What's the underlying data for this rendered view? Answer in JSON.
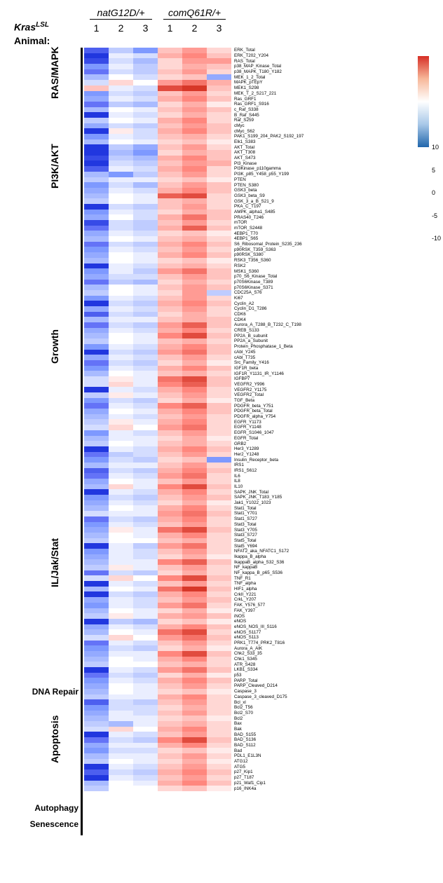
{
  "title": {
    "kras": "Kras",
    "lsl": "LSL",
    "animal": "Animal:"
  },
  "groups": [
    "natG12D/+",
    "comQ61R/+"
  ],
  "animals": [
    "1",
    "2",
    "3",
    "1",
    "2",
    "3"
  ],
  "colorbar": {
    "max": 10,
    "min": -10,
    "ticks": [
      {
        "v": "10",
        "pos": 0
      },
      {
        "v": "5",
        "pos": 25
      },
      {
        "v": "0",
        "pos": 50
      },
      {
        "v": "-5",
        "pos": 75
      },
      {
        "v": "-10",
        "pos": 100
      }
    ],
    "colors": [
      "#d62f26",
      "#f4a582",
      "#ffffff",
      "#92c5de",
      "#2166ac"
    ]
  },
  "row_height": 7.7,
  "pathways": [
    {
      "name": "RAS/MAPK",
      "start": 0,
      "end": 17
    },
    {
      "name": "PI3K/AKT",
      "start": 17,
      "end": 33
    },
    {
      "name": "Growth",
      "start": 33,
      "end": 82
    },
    {
      "name": "IL/Jak/Stat",
      "start": 82,
      "end": 116
    },
    {
      "name": "DNA Repair",
      "start": 116,
      "end": 123,
      "horiz": true
    },
    {
      "name": "Apoptosis",
      "start": 123,
      "end": 140
    },
    {
      "name": "Autophagy",
      "start": 140,
      "end": 142,
      "horiz": true
    },
    {
      "name": "Senescence",
      "start": 142,
      "end": 146,
      "horiz": true
    }
  ],
  "rows": [
    {
      "p": "ERK_Total",
      "v": [
        -8,
        -3,
        -6,
        3,
        5,
        2
      ]
    },
    {
      "p": "ERK_T202_Y204",
      "v": [
        -10,
        -1,
        -2,
        4,
        6,
        3
      ]
    },
    {
      "p": "RAS_Total",
      "v": [
        -9,
        -2,
        -4,
        2,
        5,
        5
      ]
    },
    {
      "p": "p38_MAP_Kinase_Total",
      "v": [
        -6,
        -1,
        -3,
        2,
        4,
        3
      ]
    },
    {
      "p": "p38_MAPK_T180_Y182",
      "v": [
        -7,
        -2,
        -3,
        3,
        5,
        2
      ]
    },
    {
      "p": "MEK_1_2_Total",
      "v": [
        -4,
        0,
        -2,
        2,
        3,
        -5
      ]
    },
    {
      "p": "MAPK_pTEpY",
      "v": [
        -2,
        2,
        0,
        5,
        7,
        4
      ]
    },
    {
      "p": "MEK1_S298",
      "v": [
        3,
        -1,
        -2,
        9,
        10,
        3
      ]
    },
    {
      "p": "MEK_T_2_S217_221",
      "v": [
        -6,
        -2,
        -3,
        3,
        5,
        2
      ]
    },
    {
      "p": "Ras_GRF1",
      "v": [
        -5,
        -1,
        -2,
        4,
        6,
        3
      ]
    },
    {
      "p": "Ras_GRF1_S916",
      "v": [
        -7,
        -3,
        -4,
        2,
        4,
        1
      ]
    },
    {
      "p": "c_Raf_S338",
      "v": [
        -4,
        0,
        -1,
        3,
        5,
        3
      ]
    },
    {
      "p": "B_Raf_S445",
      "v": [
        -10,
        -1,
        -2,
        2,
        4,
        2
      ]
    },
    {
      "p": "Raf_S259",
      "v": [
        -3,
        0,
        -1,
        4,
        6,
        2
      ]
    },
    {
      "p": "cMyc",
      "v": [
        -5,
        -2,
        -3,
        3,
        5,
        3
      ]
    },
    {
      "p": "cMyc_S62",
      "v": [
        -10,
        1,
        -2,
        4,
        6,
        3
      ]
    },
    {
      "p": "PAK1_S199_204_PAK2_S192_197",
      "v": [
        -6,
        -1,
        -2,
        3,
        4,
        2
      ]
    },
    {
      "p": "Elk1_S383",
      "v": [
        -4,
        0,
        -1,
        2,
        3,
        1
      ]
    },
    {
      "p": "AKT_Total",
      "v": [
        -10,
        -3,
        -5,
        3,
        5,
        2
      ]
    },
    {
      "p": "AKT_T308",
      "v": [
        -10,
        -4,
        -6,
        2,
        4,
        3
      ]
    },
    {
      "p": "AKT_S473",
      "v": [
        -9,
        -3,
        -4,
        4,
        6,
        3
      ]
    },
    {
      "p": "PI3_Kinase",
      "v": [
        -10,
        -2,
        -3,
        3,
        5,
        4
      ]
    },
    {
      "p": "PI3Kinase_p110gamma",
      "v": [
        -8,
        -1,
        -2,
        4,
        6,
        2
      ]
    },
    {
      "p": "PI3K_p85_Y458_p55_Y199",
      "v": [
        -4,
        -6,
        -3,
        3,
        5,
        2
      ]
    },
    {
      "p": "PTEN",
      "v": [
        -3,
        -1,
        -1,
        2,
        3,
        1
      ]
    },
    {
      "p": "PTEN_S380",
      "v": [
        -6,
        -2,
        -4,
        3,
        5,
        3
      ]
    },
    {
      "p": "GSK3_beta",
      "v": [
        -5,
        -1,
        -2,
        4,
        6,
        3
      ]
    },
    {
      "p": "GSK3_beta_S9",
      "v": [
        -4,
        0,
        -1,
        8,
        9,
        2
      ]
    },
    {
      "p": "GSK_3_a_B_S21_9",
      "v": [
        -3,
        0,
        -1,
        3,
        4,
        2
      ]
    },
    {
      "p": "PKA_C_T197",
      "v": [
        -10,
        -2,
        -3,
        3,
        5,
        2
      ]
    },
    {
      "p": "AMPK_alpha1_S485",
      "v": [
        -6,
        -1,
        -2,
        2,
        4,
        3
      ]
    },
    {
      "p": "PRAS40_T246",
      "v": [
        -5,
        0,
        -2,
        4,
        7,
        3
      ]
    },
    {
      "p": "mTOR",
      "v": [
        -9,
        -2,
        -3,
        3,
        5,
        2
      ]
    },
    {
      "p": "mTOR_S2448",
      "v": [
        -7,
        -2,
        -3,
        4,
        8,
        3
      ]
    },
    {
      "p": "4EBP1_T70",
      "v": [
        -5,
        -1,
        -2,
        2,
        3,
        1
      ]
    },
    {
      "p": "4EBP1_S65",
      "v": [
        -4,
        0,
        -1,
        3,
        4,
        2
      ]
    },
    {
      "p": "S6_Ribosomal_Protein_S235_236",
      "v": [
        -7,
        -2,
        -3,
        4,
        6,
        3
      ]
    },
    {
      "p": "p90RSK_T359_S363",
      "v": [
        -6,
        -1,
        -2,
        3,
        5,
        2
      ]
    },
    {
      "p": "p90RSK_S380",
      "v": [
        -5,
        0,
        -1,
        4,
        6,
        3
      ]
    },
    {
      "p": "RSK3_T356_S360",
      "v": [
        -4,
        0,
        -1,
        2,
        3,
        1
      ]
    },
    {
      "p": "RSK2",
      "v": [
        -10,
        -1,
        -2,
        3,
        4,
        2
      ]
    },
    {
      "p": "MSK1_S360",
      "v": [
        -6,
        -1,
        -3,
        5,
        7,
        3
      ]
    },
    {
      "p": "p70_S6_Kinase_Total",
      "v": [
        -5,
        -2,
        -2,
        3,
        5,
        3
      ]
    },
    {
      "p": "p70S6Kinase_T389",
      "v": [
        -7,
        -3,
        -4,
        2,
        4,
        2
      ]
    },
    {
      "p": "p70S6Kinase_S371",
      "v": [
        -4,
        0,
        -1,
        3,
        5,
        3
      ]
    },
    {
      "p": "CDC25A_S76",
      "v": [
        -3,
        0,
        -1,
        2,
        5,
        -3
      ]
    },
    {
      "p": "Ki67",
      "v": [
        -6,
        -1,
        -2,
        3,
        5,
        2
      ]
    },
    {
      "p": "Cyclin_A2",
      "v": [
        -10,
        -2,
        -3,
        4,
        6,
        3
      ]
    },
    {
      "p": "Cyclin_D1_T286",
      "v": [
        -5,
        -1,
        -2,
        3,
        5,
        2
      ]
    },
    {
      "p": "CDK6",
      "v": [
        -8,
        -2,
        -3,
        2,
        4,
        2
      ]
    },
    {
      "p": "CDK4",
      "v": [
        -4,
        -1,
        -1,
        3,
        4,
        3
      ]
    },
    {
      "p": "Aurora_A_T288_B_T232_C_T198",
      "v": [
        -7,
        -2,
        -3,
        5,
        8,
        3
      ]
    },
    {
      "p": "CREB_S133",
      "v": [
        -5,
        -1,
        -2,
        4,
        6,
        2
      ]
    },
    {
      "p": "PP2A_B_subunit",
      "v": [
        -4,
        0,
        -1,
        6,
        9,
        3
      ]
    },
    {
      "p": "PP2A_a_Subunit",
      "v": [
        -3,
        0,
        -1,
        3,
        4,
        2
      ]
    },
    {
      "p": "Protein_Phosphatase_1_Beta",
      "v": [
        -6,
        -1,
        -2,
        4,
        6,
        3
      ]
    },
    {
      "p": "cAbl_Y245",
      "v": [
        -10,
        -2,
        -3,
        5,
        7,
        3
      ]
    },
    {
      "p": "cAbl_T735",
      "v": [
        -5,
        -1,
        -2,
        3,
        5,
        2
      ]
    },
    {
      "p": "Src_Family_Y416",
      "v": [
        -7,
        -2,
        -3,
        2,
        4,
        1
      ]
    },
    {
      "p": "IGF1R_beta",
      "v": [
        -6,
        -1,
        -2,
        4,
        6,
        3
      ]
    },
    {
      "p": "IGF1R_Y1131_IR_Y1146",
      "v": [
        -4,
        0,
        -1,
        3,
        4,
        2
      ]
    },
    {
      "p": "IGFBP7",
      "v": [
        -2,
        1,
        -1,
        7,
        9,
        3
      ]
    },
    {
      "p": "VEGFR2_Y996",
      "v": [
        -2,
        2,
        -1,
        6,
        8,
        3
      ]
    },
    {
      "p": "VEGFR2_Y1175",
      "v": [
        -10,
        -1,
        -2,
        4,
        6,
        2
      ]
    },
    {
      "p": "VEGFR2_Total",
      "v": [
        -3,
        1,
        -1,
        3,
        5,
        2
      ]
    },
    {
      "p": "TGF_Beta",
      "v": [
        -6,
        -2,
        -3,
        2,
        4,
        1
      ]
    },
    {
      "p": "PDGFR_beta_Y751",
      "v": [
        -7,
        -1,
        -2,
        6,
        8,
        3
      ]
    },
    {
      "p": "PDGFR_beta_Total",
      "v": [
        -5,
        0,
        -1,
        4,
        6,
        3
      ]
    },
    {
      "p": "PDGFR_alpha_Y754",
      "v": [
        -4,
        -1,
        -2,
        3,
        5,
        2
      ]
    },
    {
      "p": "EGFR_Y1173",
      "v": [
        -3,
        1,
        -1,
        4,
        6,
        2
      ]
    },
    {
      "p": "EGFR_Y1148",
      "v": [
        -2,
        2,
        0,
        5,
        7,
        2
      ]
    },
    {
      "p": "EGFR_S1046_1047",
      "v": [
        -6,
        -1,
        -2,
        3,
        5,
        2
      ]
    },
    {
      "p": "EGFR_Total",
      "v": [
        -4,
        -1,
        -1,
        2,
        4,
        1
      ]
    },
    {
      "p": "GRB2",
      "v": [
        -3,
        0,
        -1,
        3,
        4,
        2
      ]
    },
    {
      "p": "Her3_Y1289",
      "v": [
        -10,
        -1,
        -2,
        4,
        6,
        3
      ]
    },
    {
      "p": "Her2_Y1248",
      "v": [
        -7,
        -3,
        -2,
        3,
        5,
        2
      ]
    },
    {
      "p": "Insulin_Receptor_beta",
      "v": [
        -6,
        -2,
        -3,
        2,
        3,
        -6
      ]
    },
    {
      "p": "IRS1",
      "v": [
        -4,
        -1,
        -1,
        3,
        5,
        2
      ]
    },
    {
      "p": "IRS1_S612",
      "v": [
        -8,
        -2,
        -3,
        4,
        6,
        3
      ]
    },
    {
      "p": "IL6",
      "v": [
        -7,
        -1,
        -2,
        5,
        7,
        2
      ]
    },
    {
      "p": "IL8",
      "v": [
        -5,
        0,
        -1,
        3,
        5,
        2
      ]
    },
    {
      "p": "IL10",
      "v": [
        -4,
        2,
        -1,
        6,
        9,
        3
      ]
    },
    {
      "p": "SAPK_JNK_Total",
      "v": [
        -10,
        -1,
        -2,
        4,
        6,
        2
      ]
    },
    {
      "p": "SAPK_JNK_T183_Y185",
      "v": [
        -6,
        -2,
        -3,
        3,
        5,
        3
      ]
    },
    {
      "p": "Jak1_Y1022_1023",
      "v": [
        -5,
        -1,
        -2,
        2,
        4,
        1
      ]
    },
    {
      "p": "Stat1_Total",
      "v": [
        -4,
        0,
        -1,
        4,
        6,
        2
      ]
    },
    {
      "p": "Stat1_Y701",
      "v": [
        -2,
        -1,
        -1,
        5,
        7,
        3
      ]
    },
    {
      "p": "Stat1_S727",
      "v": [
        -7,
        -2,
        -3,
        4,
        6,
        2
      ]
    },
    {
      "p": "Stat3_Total",
      "v": [
        -6,
        -1,
        -2,
        3,
        5,
        2
      ]
    },
    {
      "p": "Stat3_Y705",
      "v": [
        -5,
        1,
        -1,
        7,
        9,
        3
      ]
    },
    {
      "p": "Stat3_S727",
      "v": [
        -4,
        0,
        -1,
        4,
        6,
        2
      ]
    },
    {
      "p": "Stat5_Total",
      "v": [
        -3,
        0,
        0,
        3,
        4,
        2
      ]
    },
    {
      "p": "Stat5_Y694",
      "v": [
        -10,
        -1,
        -3,
        5,
        7,
        2
      ]
    },
    {
      "p": "NFAT2_aka_NFATC1_S172",
      "v": [
        -6,
        -1,
        -2,
        3,
        5,
        2
      ]
    },
    {
      "p": "Ikappa_B_alpha",
      "v": [
        -5,
        -1,
        -2,
        2,
        4,
        1
      ]
    },
    {
      "p": "IkappaB_alpha_S32_S36",
      "v": [
        -4,
        -1,
        -1,
        6,
        8,
        3
      ]
    },
    {
      "p": "NF_kappaB",
      "v": [
        -3,
        1,
        -1,
        3,
        5,
        2
      ]
    },
    {
      "p": "NF_kappa_B_p65_S536",
      "v": [
        -7,
        -2,
        -3,
        2,
        4,
        2
      ]
    },
    {
      "p": "TNF_R1",
      "v": [
        -2,
        2,
        0,
        6,
        9,
        3
      ]
    },
    {
      "p": "TNF_alpha",
      "v": [
        -10,
        -1,
        -2,
        3,
        5,
        2
      ]
    },
    {
      "p": "HIF1_alpha",
      "v": [
        -4,
        0,
        -1,
        7,
        10,
        3
      ]
    },
    {
      "p": "CrkII_Y221",
      "v": [
        -10,
        -2,
        -3,
        4,
        6,
        2
      ]
    },
    {
      "p": "CrkL_Y207",
      "v": [
        -5,
        -1,
        -2,
        3,
        5,
        3
      ]
    },
    {
      "p": "FAK_Y576_577",
      "v": [
        -6,
        -1,
        -2,
        5,
        7,
        2
      ]
    },
    {
      "p": "FAK_Y397",
      "v": [
        -4,
        0,
        -1,
        2,
        4,
        1
      ]
    },
    {
      "p": "iNOS",
      "v": [
        -3,
        1,
        -1,
        4,
        5,
        3
      ]
    },
    {
      "p": "eNOS",
      "v": [
        -10,
        -3,
        -4,
        2,
        3,
        1
      ]
    },
    {
      "p": "eNOS_NOS_III_S116",
      "v": [
        -5,
        -1,
        -2,
        4,
        6,
        3
      ]
    },
    {
      "p": "eNOS_S1177",
      "v": [
        -4,
        0,
        -1,
        7,
        9,
        2
      ]
    },
    {
      "p": "eNOS_S113",
      "v": [
        -2,
        2,
        0,
        5,
        7,
        3
      ]
    },
    {
      "p": "PRK1_T774_PRK2_T816",
      "v": [
        -7,
        -1,
        -2,
        3,
        5,
        2
      ]
    },
    {
      "p": "Aurora_A_AIK",
      "v": [
        -6,
        -2,
        -3,
        2,
        4,
        1
      ]
    },
    {
      "p": "Chk2_S33_35",
      "v": [
        -5,
        -1,
        -1,
        6,
        9,
        3
      ]
    },
    {
      "p": "Chk1_S345",
      "v": [
        -4,
        0,
        -1,
        4,
        6,
        2
      ]
    },
    {
      "p": "ATR_S428",
      "v": [
        -3,
        0,
        0,
        3,
        4,
        2
      ]
    },
    {
      "p": "LKB1_S334",
      "v": [
        -10,
        -1,
        -2,
        5,
        7,
        3
      ]
    },
    {
      "p": "p53",
      "v": [
        -7,
        -2,
        -3,
        2,
        4,
        1
      ]
    },
    {
      "p": "PARP_Total",
      "v": [
        -6,
        -1,
        -2,
        4,
        6,
        3
      ]
    },
    {
      "p": "PARP_Cleaved_D214",
      "v": [
        -5,
        0,
        -1,
        3,
        5,
        2
      ]
    },
    {
      "p": "Caspase_3",
      "v": [
        -4,
        0,
        -1,
        2,
        3,
        1
      ]
    },
    {
      "p": "Caspase_3_cleaved_D175",
      "v": [
        -3,
        -1,
        -1,
        4,
        6,
        2
      ]
    },
    {
      "p": "Bcl_xl",
      "v": [
        -8,
        -2,
        -3,
        3,
        5,
        2
      ]
    },
    {
      "p": "Bcl2_T56",
      "v": [
        -6,
        -2,
        -2,
        2,
        4,
        2
      ]
    },
    {
      "p": "Bcl2_S70",
      "v": [
        -5,
        -1,
        -2,
        3,
        5,
        2
      ]
    },
    {
      "p": "Bcl2",
      "v": [
        -4,
        -1,
        -1,
        2,
        3,
        1
      ]
    },
    {
      "p": "Bax",
      "v": [
        -3,
        -4,
        -1,
        3,
        4,
        2
      ]
    },
    {
      "p": "Bak",
      "v": [
        -2,
        2,
        0,
        4,
        6,
        2
      ]
    },
    {
      "p": "BAD_S155",
      "v": [
        -10,
        -1,
        -2,
        3,
        5,
        2
      ]
    },
    {
      "p": "BAD_S136",
      "v": [
        -7,
        -2,
        -3,
        6,
        9,
        3
      ]
    },
    {
      "p": "BAD_S112",
      "v": [
        -5,
        -1,
        -1,
        4,
        6,
        2
      ]
    },
    {
      "p": "Bad",
      "v": [
        -6,
        -2,
        -2,
        2,
        3,
        1
      ]
    },
    {
      "p": "PDL1_E1L3N",
      "v": [
        -4,
        -1,
        -1,
        3,
        5,
        2
      ]
    },
    {
      "p": "ATG12",
      "v": [
        -3,
        0,
        -1,
        2,
        4,
        1
      ]
    },
    {
      "p": "ATG5",
      "v": [
        -10,
        -1,
        -2,
        3,
        5,
        2
      ]
    },
    {
      "p": "p27_Kip1",
      "v": [
        -8,
        -2,
        -3,
        4,
        6,
        3
      ]
    },
    {
      "p": "p27_T187",
      "v": [
        -10,
        -1,
        -2,
        3,
        5,
        2
      ]
    },
    {
      "p": "p21_Waf1_Cip1",
      "v": [
        -4,
        0,
        -1,
        4,
        6,
        3
      ]
    },
    {
      "p": "p16_INK4a",
      "v": [
        -3,
        0,
        0,
        2,
        3,
        1
      ]
    }
  ]
}
